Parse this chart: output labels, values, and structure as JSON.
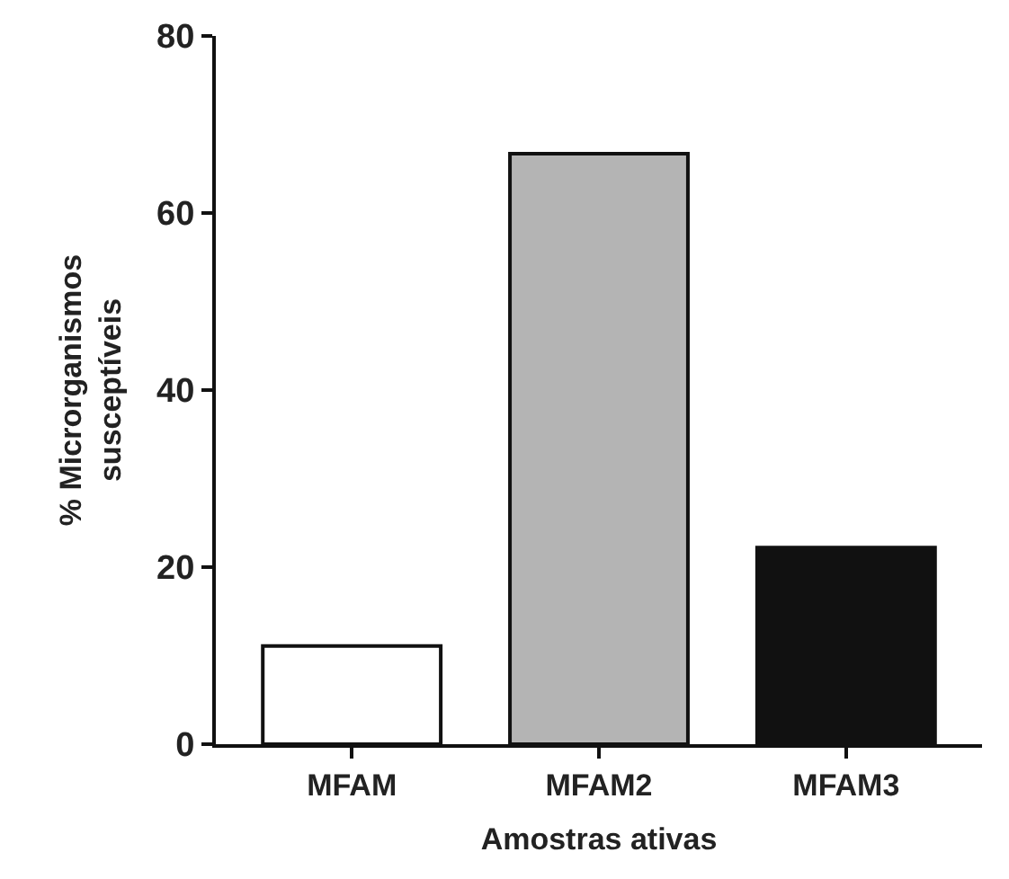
{
  "chart_data": {
    "type": "bar",
    "xlabel": "Amostras ativas",
    "ylabel": "% Microrganismos\nsusceptíveis",
    "categories": [
      "MFAM",
      "MFAM2",
      "MFAM3"
    ],
    "values": [
      11.1,
      66.7,
      22.2
    ],
    "colors": [
      "#ffffff",
      "#b4b4b4",
      "#111111"
    ],
    "ylim": [
      0,
      80
    ],
    "yticks": [
      0,
      20,
      40,
      60,
      80
    ],
    "legend": false
  }
}
